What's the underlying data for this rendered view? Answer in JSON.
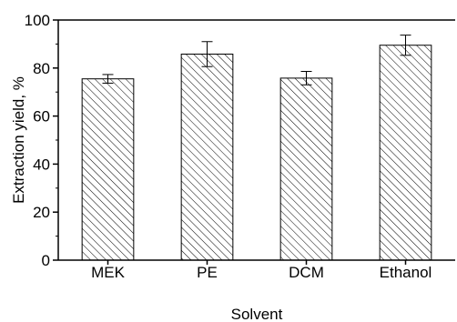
{
  "chart_data": {
    "type": "bar",
    "categories": [
      "MEK",
      "PE",
      "DCM",
      "Ethanol"
    ],
    "values": [
      75.5,
      85.8,
      75.8,
      89.5
    ],
    "errors": [
      1.8,
      5.2,
      2.8,
      4.2
    ],
    "xlabel": "Solvent",
    "ylabel": "Extraction yield, %",
    "ylim": [
      0,
      100
    ],
    "yticks": [
      0,
      20,
      40,
      60,
      80,
      100
    ],
    "grid": false,
    "bar_fill": "diagonal-hatch",
    "bar_color": "#000000"
  }
}
